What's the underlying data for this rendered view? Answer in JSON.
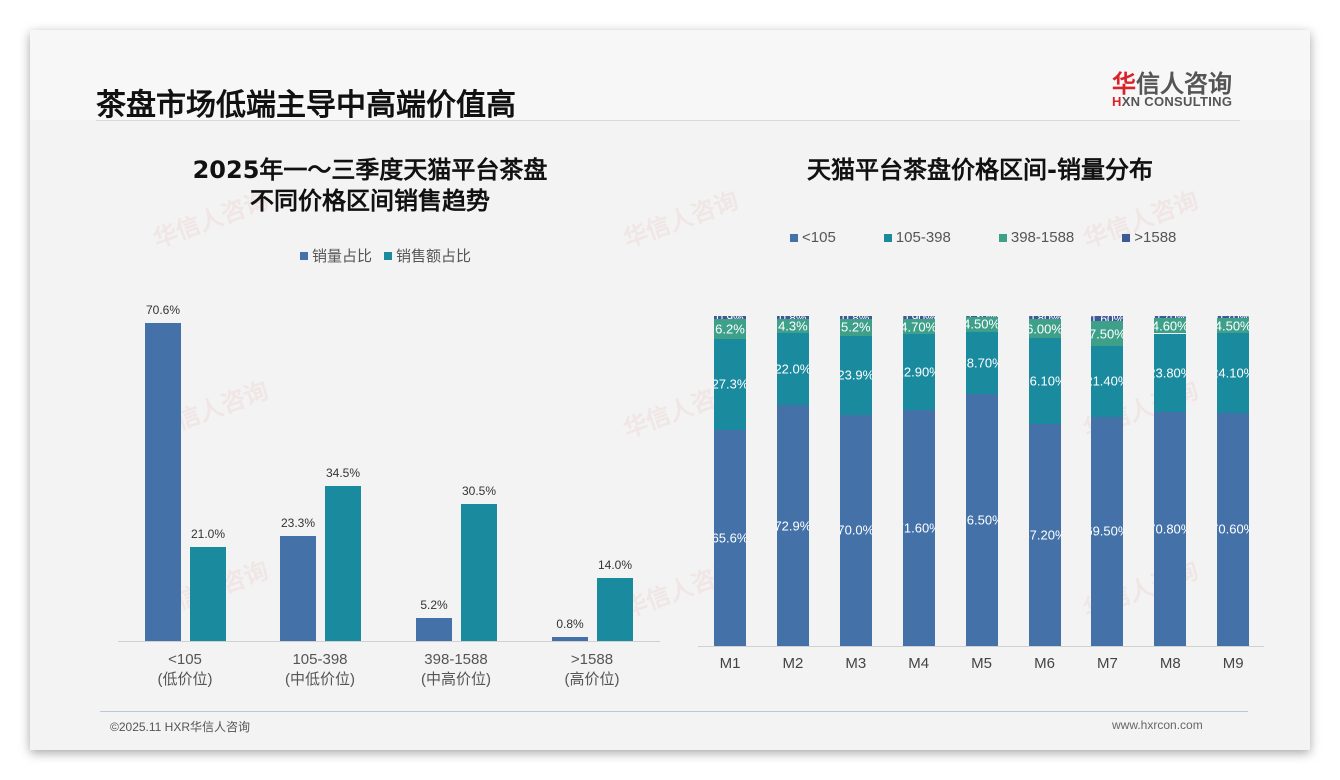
{
  "header": {
    "title": "茶盘市场低端主导中高端价值高",
    "logo_cn_red": "华",
    "logo_cn_rest": "信人咨询",
    "logo_en_red": "H",
    "logo_en_rest": "XN CONSULTING"
  },
  "watermark": "华信人咨询",
  "left_chart": {
    "title_line1": "2025年一～三季度天猫平台茶盘",
    "title_line2": "不同价格区间销售趋势",
    "legend": [
      {
        "label": "销量占比",
        "color": "#4472a8"
      },
      {
        "label": "销售额占比",
        "color": "#1a8a9e"
      }
    ],
    "categories": [
      {
        "range": "<105",
        "tier": "(低价位)"
      },
      {
        "range": "105-398",
        "tier": "(中低价位)"
      },
      {
        "range": "398-1588",
        "tier": "(中高价位)"
      },
      {
        "range": ">1588",
        "tier": "(高价位)"
      }
    ],
    "values": [
      {
        "volume": "70.6%",
        "sales": "21.0%"
      },
      {
        "volume": "23.3%",
        "sales": "34.5%"
      },
      {
        "volume": "5.2%",
        "sales": "30.5%"
      },
      {
        "volume": "0.8%",
        "sales": "14.0%"
      }
    ]
  },
  "right_chart": {
    "title": "天猫平台茶盘价格区间-销量分布",
    "legend": [
      {
        "label": "<105",
        "color": "#4472a8"
      },
      {
        "label": "105-398",
        "color": "#1a8a9e"
      },
      {
        "label": "398-1588",
        "color": "#3fa08a"
      },
      {
        "label": ">1588",
        "color": "#3d5a96"
      }
    ],
    "months": [
      "M1",
      "M2",
      "M3",
      "M4",
      "M5",
      "M6",
      "M7",
      "M8",
      "M9"
    ],
    "labels": [
      {
        "a": "65.6%",
        "b": "27.3%",
        "c": "6.2%",
        "d": "0.9%"
      },
      {
        "a": "72.9%",
        "b": "22.0%",
        "c": "4.3%",
        "d": "0.8%"
      },
      {
        "a": "70.0%",
        "b": "23.9%",
        "c": "5.2%",
        "d": "0.8%"
      },
      {
        "a": "71.60%",
        "b": "22.90%",
        "c": "4.70%",
        "d": "0.90%"
      },
      {
        "a": "76.50%",
        "b": "18.70%",
        "c": "4.50%",
        "d": "0.30%"
      },
      {
        "a": "67.20%",
        "b": "26.10%",
        "c": "6.00%",
        "d": "0.80%"
      },
      {
        "a": "69.50%",
        "b": "21.40%",
        "c": "7.50%",
        "d": "1.60%"
      },
      {
        "a": "70.80%",
        "b": "23.80%",
        "c": "4.60%",
        "d": "0.70%"
      },
      {
        "a": "70.60%",
        "b": "24.10%",
        "c": "4.50%",
        "d": "0.70%"
      }
    ]
  },
  "footer": {
    "left": "©2025.11 HXR华信人咨询",
    "right": "www.hxrcon.com"
  },
  "chart_data": [
    {
      "type": "bar",
      "title": "2025年一～三季度天猫平台茶盘不同价格区间销售趋势",
      "categories": [
        "<105 (低价位)",
        "105-398 (中低价位)",
        "398-1588 (中高价位)",
        ">1588 (高价位)"
      ],
      "series": [
        {
          "name": "销量占比",
          "values": [
            70.6,
            23.3,
            5.2,
            0.8
          ]
        },
        {
          "name": "销售额占比",
          "values": [
            21.0,
            34.5,
            30.5,
            14.0
          ]
        }
      ],
      "ylabel": "%",
      "legend_position": "top",
      "grid": false
    },
    {
      "type": "bar",
      "stacked": true,
      "title": "天猫平台茶盘价格区间-销量分布",
      "categories": [
        "M1",
        "M2",
        "M3",
        "M4",
        "M5",
        "M6",
        "M7",
        "M8",
        "M9"
      ],
      "series": [
        {
          "name": "<105",
          "values": [
            65.6,
            72.9,
            70.0,
            71.6,
            76.5,
            67.2,
            69.5,
            70.8,
            70.6
          ]
        },
        {
          "name": "105-398",
          "values": [
            27.3,
            22.0,
            23.9,
            22.9,
            18.7,
            26.1,
            21.4,
            23.8,
            24.1
          ]
        },
        {
          "name": "398-1588",
          "values": [
            6.2,
            4.3,
            5.2,
            4.7,
            4.5,
            6.0,
            7.5,
            4.6,
            4.5
          ]
        },
        {
          "name": ">1588",
          "values": [
            0.9,
            0.8,
            0.8,
            0.9,
            0.3,
            0.8,
            1.6,
            0.7,
            0.7
          ]
        }
      ],
      "ylim": [
        0,
        100
      ],
      "legend_position": "top",
      "grid": false
    }
  ]
}
